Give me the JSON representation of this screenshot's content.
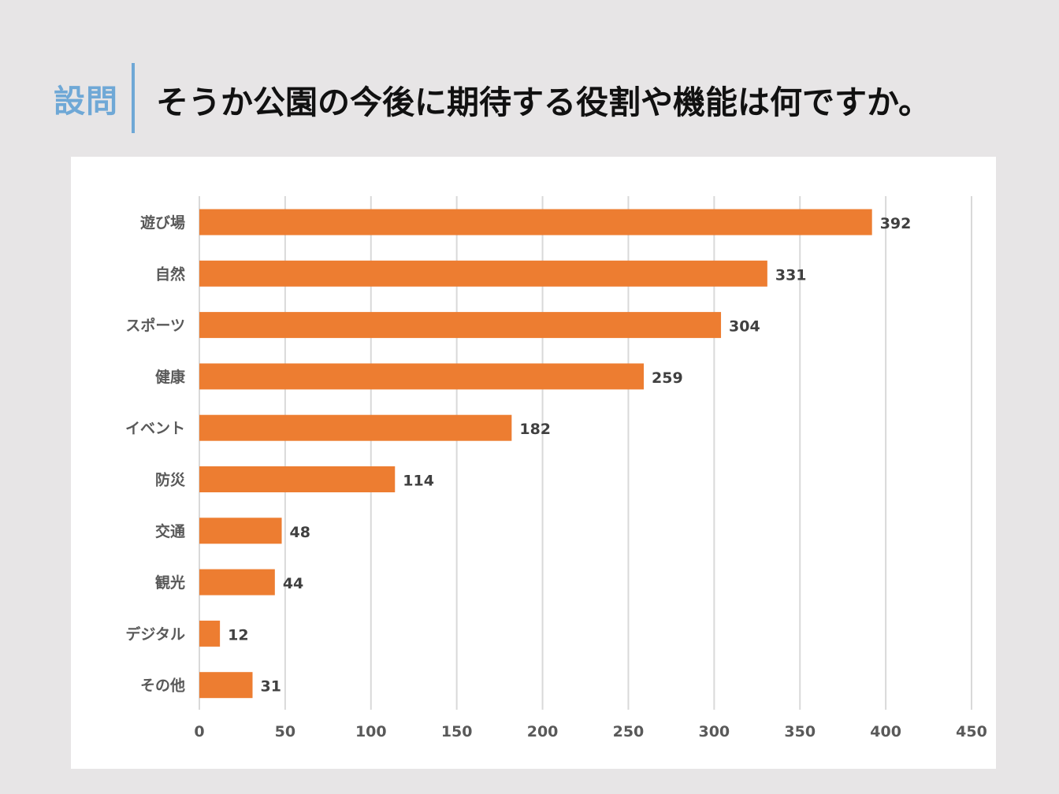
{
  "header": {
    "question_label": "設問",
    "question_text": "そうか公園の今後に期待する役割や機能は何ですか。"
  },
  "colors": {
    "background": "#e7e5e6",
    "accent": "#6fa8d6",
    "bar": "#ed7d31",
    "grid": "#d9d9d9"
  },
  "chart_data": {
    "type": "bar",
    "orientation": "horizontal",
    "title": "",
    "xlabel": "",
    "ylabel": "",
    "categories": [
      "遊び場",
      "自然",
      "スポーツ",
      "健康",
      "イベント",
      "防災",
      "交通",
      "観光",
      "デジタル",
      "その他"
    ],
    "values": [
      392,
      331,
      304,
      259,
      182,
      114,
      48,
      44,
      12,
      31
    ],
    "xlim": [
      0,
      450
    ],
    "xticks": [
      0,
      50,
      100,
      150,
      200,
      250,
      300,
      350,
      400,
      450
    ],
    "grid": true,
    "data_labels": true
  }
}
